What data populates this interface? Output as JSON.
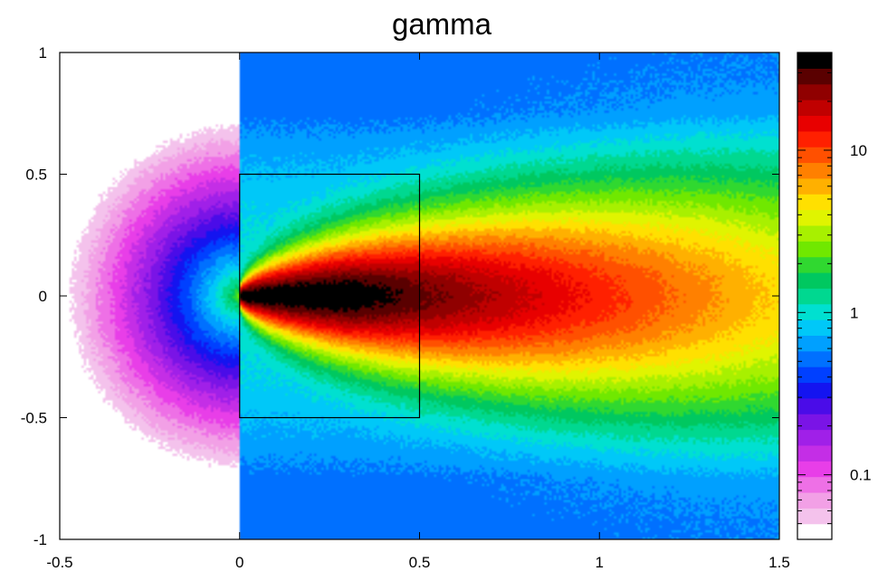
{
  "chart_data": {
    "type": "heatmap",
    "title": "gamma",
    "xlabel": "",
    "ylabel": "",
    "xlim": [
      -0.5,
      1.5
    ],
    "ylim": [
      -1,
      1
    ],
    "x_ticks": [
      "-0.5",
      "0",
      "0.5",
      "1",
      "1.5"
    ],
    "y_ticks": [
      "1",
      "0.5",
      "0",
      "-0.5",
      "-1"
    ],
    "colorbar": {
      "scale": "log",
      "ticks": [
        "10",
        "1",
        "0.1"
      ],
      "range": [
        0.04,
        40
      ],
      "colors": [
        "#ffffff",
        "#f4c2ec",
        "#f2a0e6",
        "#ee70e6",
        "#e83ee8",
        "#c42ee6",
        "#a020e8",
        "#7a14e6",
        "#4a0ce8",
        "#1414f0",
        "#0040ff",
        "#0070ff",
        "#00a0ff",
        "#00c8f8",
        "#00e0d0",
        "#00d890",
        "#00c860",
        "#30d830",
        "#70e800",
        "#a8f000",
        "#e0f400",
        "#ffe000",
        "#ffb000",
        "#ff8000",
        "#ff5000",
        "#ff2000",
        "#e80000",
        "#c00000",
        "#900000",
        "#5a0000",
        "#000000"
      ]
    },
    "field": {
      "description_source": "gamma",
      "source_point": [
        0,
        0
      ],
      "box": {
        "x": [
          0,
          0.5
        ],
        "y": [
          -0.5,
          0.5
        ]
      },
      "peak_segment_x": [
        0.1,
        0.4
      ],
      "values_along_axis": [
        {
          "x": 0.0,
          "gamma": 20
        },
        {
          "x": 0.2,
          "gamma": 40
        },
        {
          "x": 0.4,
          "gamma": 40
        },
        {
          "x": 0.6,
          "gamma": 20
        },
        {
          "x": 0.8,
          "gamma": 10
        },
        {
          "x": 1.0,
          "gamma": 7
        },
        {
          "x": 1.5,
          "gamma": 5
        }
      ],
      "min_value_corner": 0.04
    }
  },
  "colors": {
    "frame": "#000000",
    "background": "#ffffff"
  }
}
